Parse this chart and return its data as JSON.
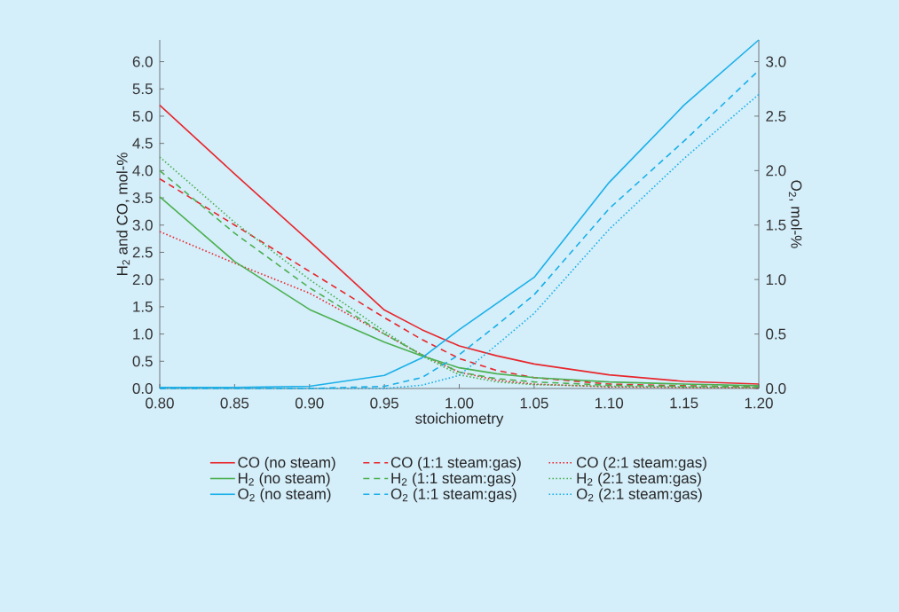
{
  "chart_data": {
    "type": "line",
    "xlabel": "stoichiometry",
    "ylabel": "H$_{2}$ and CO, mol-%",
    "y2label": "O$_{2}$, mol-%",
    "xlim": [
      0.8,
      1.2
    ],
    "ylim": [
      0,
      6.4
    ],
    "y2lim": [
      0,
      3.2
    ],
    "xticks": [
      {
        "value": 0.8,
        "label": "0.80"
      },
      {
        "value": 0.85,
        "label": "0.85"
      },
      {
        "value": 0.9,
        "label": "0.90"
      },
      {
        "value": 0.95,
        "label": "0.95"
      },
      {
        "value": 1.0,
        "label": "1.00"
      },
      {
        "value": 1.05,
        "label": "1.05"
      },
      {
        "value": 1.1,
        "label": "1.10"
      },
      {
        "value": 1.15,
        "label": "1.15"
      },
      {
        "value": 1.2,
        "label": "1.20"
      }
    ],
    "yticks": [
      {
        "value": 0,
        "label": "0.0"
      },
      0.5,
      {
        "value": 1,
        "label": "1.0"
      },
      1.5,
      {
        "value": 2,
        "label": "2.0"
      },
      2.5,
      {
        "value": 3,
        "label": "3.0"
      },
      3.5,
      {
        "value": 4,
        "label": "4.0"
      },
      4.5,
      {
        "value": 5,
        "label": "5.0"
      },
      5.5,
      {
        "value": 6,
        "label": "6.0"
      }
    ],
    "y2ticks": [
      {
        "value": 0,
        "label": "0.0"
      },
      0.5,
      {
        "value": 1,
        "label": "1.0"
      },
      1.5,
      {
        "value": 2,
        "label": "2.0"
      },
      2.5,
      {
        "value": 3,
        "label": "3.0"
      }
    ],
    "x": [
      0.8,
      0.85,
      0.9,
      0.95,
      0.975,
      1.0,
      1.025,
      1.05,
      1.1,
      1.15,
      1.2
    ],
    "grid": false,
    "legend": "bottom",
    "marker": "none",
    "series": [
      {
        "name": "CO (no steam)",
        "color": "#e8262b",
        "line_style": "solid",
        "values": [
          5.2,
          3.94,
          2.7,
          1.44,
          1.08,
          0.78,
          0.6,
          0.45,
          0.25,
          0.13,
          0.08
        ]
      },
      {
        "name": "CO (1:1 steam:gas)",
        "color": "#e8262b",
        "line_style": "dashed",
        "values": [
          3.85,
          3.0,
          2.15,
          1.3,
          0.9,
          0.55,
          0.33,
          0.2,
          0.08,
          0.05,
          0.03
        ]
      },
      {
        "name": "CO (2:1 steam:gas)",
        "color": "#e8262b",
        "line_style": "dotted",
        "values": [
          2.88,
          2.3,
          1.75,
          1.0,
          0.62,
          0.3,
          0.15,
          0.08,
          0.03,
          0.02,
          0.01
        ]
      },
      {
        "name": "H$_{2}$ (no steam)",
        "color": "#4cb050",
        "line_style": "solid",
        "values": [
          3.52,
          2.33,
          1.45,
          0.85,
          0.6,
          0.38,
          0.27,
          0.2,
          0.12,
          0.08,
          0.05
        ]
      },
      {
        "name": "H$_{2}$ (1:1 steam:gas)",
        "color": "#4cb050",
        "line_style": "dashed",
        "values": [
          4.0,
          2.85,
          1.85,
          1.0,
          0.62,
          0.3,
          0.18,
          0.12,
          0.06,
          0.04,
          0.03
        ]
      },
      {
        "name": "H$_{2}$ (2:1 steam:gas)",
        "color": "#4cb050",
        "line_style": "dotted",
        "values": [
          4.25,
          3.05,
          2.0,
          1.05,
          0.6,
          0.25,
          0.12,
          0.07,
          0.04,
          0.03,
          0.02
        ]
      },
      {
        "name": "O$_{2}$ (no steam)",
        "color": "#1ab0e8",
        "line_style": "solid",
        "axis": "y2",
        "values": [
          0.01,
          0.01,
          0.02,
          0.12,
          0.28,
          0.54,
          0.78,
          1.02,
          1.89,
          2.6,
          3.2
        ]
      },
      {
        "name": "O$_{2}$ (1:1 steam:gas)",
        "color": "#1ab0e8",
        "line_style": "dashed",
        "axis": "y2",
        "values": [
          0.0,
          0.0,
          0.0,
          0.02,
          0.1,
          0.31,
          0.58,
          0.86,
          1.65,
          2.27,
          2.92
        ]
      },
      {
        "name": "O$_{2}$ (2:1 steam:gas)",
        "color": "#1ab0e8",
        "line_style": "dotted",
        "axis": "y2",
        "values": [
          0.0,
          0.0,
          0.0,
          0.0,
          0.03,
          0.12,
          0.4,
          0.69,
          1.46,
          2.11,
          2.7
        ]
      }
    ]
  }
}
